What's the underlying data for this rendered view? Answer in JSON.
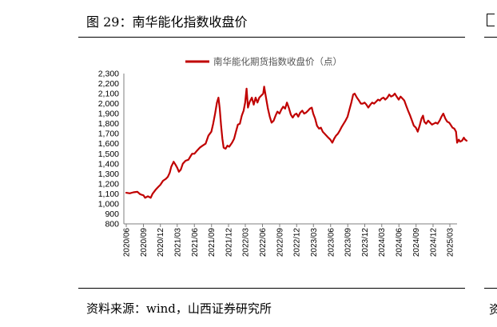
{
  "figure": {
    "title": "图 29：南华能化指数收盘价",
    "source": "资料来源：wind，山西证券研究所",
    "right_stub_top": "图",
    "right_stub_bottom": "资"
  },
  "chart_data": {
    "type": "line",
    "title": "",
    "xlabel": "",
    "ylabel": "",
    "ylim": [
      800,
      2300
    ],
    "yticks": [
      "2,300",
      "2,200",
      "2,100",
      "2,000",
      "1,900",
      "1,800",
      "1,700",
      "1,600",
      "1,500",
      "1,400",
      "1,300",
      "1,200",
      "1,100",
      "1,000",
      "900",
      "800"
    ],
    "xticks": [
      "2020/06",
      "2020/09",
      "2020/12",
      "2021/03",
      "2021/06",
      "2021/09",
      "2021/12",
      "2022/03",
      "2022/06",
      "2022/09",
      "2022/12",
      "2023/03",
      "2023/06",
      "2023/09",
      "2023/12",
      "2024/03",
      "2024/06",
      "2024/09",
      "2024/12",
      "2025/03"
    ],
    "legend_position": "top",
    "grid": false,
    "series": [
      {
        "name": "南华能化期货指数收盘价（点）",
        "color": "#c00000",
        "points": [
          [
            "2020-06-01",
            1110
          ],
          [
            "2020-06-20",
            1105
          ],
          [
            "2020-07-10",
            1115
          ],
          [
            "2020-07-31",
            1120
          ],
          [
            "2020-08-15",
            1095
          ],
          [
            "2020-09-01",
            1085
          ],
          [
            "2020-09-10",
            1060
          ],
          [
            "2020-09-25",
            1075
          ],
          [
            "2020-10-10",
            1060
          ],
          [
            "2020-10-20",
            1100
          ],
          [
            "2020-11-05",
            1140
          ],
          [
            "2020-11-20",
            1170
          ],
          [
            "2020-12-01",
            1190
          ],
          [
            "2020-12-15",
            1230
          ],
          [
            "2020-12-31",
            1250
          ],
          [
            "2021-01-10",
            1270
          ],
          [
            "2021-01-20",
            1310
          ],
          [
            "2021-01-28",
            1370
          ],
          [
            "2021-02-10",
            1420
          ],
          [
            "2021-02-20",
            1390
          ],
          [
            "2021-03-01",
            1360
          ],
          [
            "2021-03-10",
            1320
          ],
          [
            "2021-03-20",
            1340
          ],
          [
            "2021-03-31",
            1400
          ],
          [
            "2021-04-15",
            1430
          ],
          [
            "2021-04-30",
            1440
          ],
          [
            "2021-05-10",
            1470
          ],
          [
            "2021-05-20",
            1500
          ],
          [
            "2021-06-01",
            1500
          ],
          [
            "2021-06-15",
            1530
          ],
          [
            "2021-06-30",
            1560
          ],
          [
            "2021-07-15",
            1580
          ],
          [
            "2021-07-31",
            1600
          ],
          [
            "2021-08-15",
            1680
          ],
          [
            "2021-08-31",
            1720
          ],
          [
            "2021-09-10",
            1800
          ],
          [
            "2021-09-20",
            1900
          ],
          [
            "2021-09-30",
            2010
          ],
          [
            "2021-10-08",
            2060
          ],
          [
            "2021-10-15",
            1950
          ],
          [
            "2021-10-22",
            1780
          ],
          [
            "2021-10-29",
            1650
          ],
          [
            "2021-11-05",
            1560
          ],
          [
            "2021-11-15",
            1550
          ],
          [
            "2021-11-25",
            1580
          ],
          [
            "2021-12-05",
            1570
          ],
          [
            "2021-12-20",
            1610
          ],
          [
            "2021-12-31",
            1650
          ],
          [
            "2022-01-10",
            1720
          ],
          [
            "2022-01-20",
            1790
          ],
          [
            "2022-01-31",
            1800
          ],
          [
            "2022-02-10",
            1880
          ],
          [
            "2022-02-20",
            1930
          ],
          [
            "2022-02-28",
            2010
          ],
          [
            "2022-03-08",
            2150
          ],
          [
            "2022-03-15",
            1960
          ],
          [
            "2022-03-25",
            2020
          ],
          [
            "2022-04-05",
            2060
          ],
          [
            "2022-04-15",
            1990
          ],
          [
            "2022-04-25",
            2060
          ],
          [
            "2022-05-05",
            2010
          ],
          [
            "2022-05-15",
            2060
          ],
          [
            "2022-05-25",
            2080
          ],
          [
            "2022-06-05",
            2100
          ],
          [
            "2022-06-10",
            2170
          ],
          [
            "2022-06-20",
            2060
          ],
          [
            "2022-06-30",
            1950
          ],
          [
            "2022-07-10",
            1870
          ],
          [
            "2022-07-20",
            1810
          ],
          [
            "2022-07-31",
            1830
          ],
          [
            "2022-08-10",
            1880
          ],
          [
            "2022-08-20",
            1920
          ],
          [
            "2022-08-31",
            1900
          ],
          [
            "2022-09-10",
            1940
          ],
          [
            "2022-09-20",
            1970
          ],
          [
            "2022-09-30",
            1950
          ],
          [
            "2022-10-10",
            2010
          ],
          [
            "2022-10-20",
            1960
          ],
          [
            "2022-10-31",
            1890
          ],
          [
            "2022-11-10",
            1860
          ],
          [
            "2022-11-20",
            1890
          ],
          [
            "2022-11-30",
            1900
          ],
          [
            "2022-12-10",
            1870
          ],
          [
            "2022-12-20",
            1910
          ],
          [
            "2022-12-31",
            1930
          ],
          [
            "2023-01-10",
            1900
          ],
          [
            "2023-01-20",
            1910
          ],
          [
            "2023-01-31",
            1930
          ],
          [
            "2023-02-10",
            1950
          ],
          [
            "2023-02-20",
            1960
          ],
          [
            "2023-02-28",
            1900
          ],
          [
            "2023-03-10",
            1850
          ],
          [
            "2023-03-20",
            1780
          ],
          [
            "2023-03-31",
            1750
          ],
          [
            "2023-04-10",
            1760
          ],
          [
            "2023-04-20",
            1720
          ],
          [
            "2023-04-30",
            1700
          ],
          [
            "2023-05-10",
            1680
          ],
          [
            "2023-05-20",
            1660
          ],
          [
            "2023-05-31",
            1640
          ],
          [
            "2023-06-10",
            1610
          ],
          [
            "2023-06-20",
            1650
          ],
          [
            "2023-06-30",
            1680
          ],
          [
            "2023-07-10",
            1700
          ],
          [
            "2023-07-20",
            1730
          ],
          [
            "2023-07-31",
            1770
          ],
          [
            "2023-08-10",
            1800
          ],
          [
            "2023-08-20",
            1830
          ],
          [
            "2023-08-31",
            1870
          ],
          [
            "2023-09-10",
            1940
          ],
          [
            "2023-09-20",
            2010
          ],
          [
            "2023-09-30",
            2090
          ],
          [
            "2023-10-08",
            2100
          ],
          [
            "2023-10-20",
            2060
          ],
          [
            "2023-10-31",
            2030
          ],
          [
            "2023-11-10",
            2000
          ],
          [
            "2023-11-20",
            2000
          ],
          [
            "2023-11-30",
            2010
          ],
          [
            "2023-12-10",
            1990
          ],
          [
            "2023-12-20",
            1960
          ],
          [
            "2023-12-31",
            1990
          ],
          [
            "2024-01-10",
            2010
          ],
          [
            "2024-01-20",
            2000
          ],
          [
            "2024-01-31",
            2020
          ],
          [
            "2024-02-10",
            2040
          ],
          [
            "2024-02-20",
            2030
          ],
          [
            "2024-02-29",
            2050
          ],
          [
            "2024-03-10",
            2060
          ],
          [
            "2024-03-20",
            2040
          ],
          [
            "2024-03-31",
            2060
          ],
          [
            "2024-04-10",
            2090
          ],
          [
            "2024-04-20",
            2070
          ],
          [
            "2024-04-30",
            2080
          ],
          [
            "2024-05-10",
            2100
          ],
          [
            "2024-05-20",
            2070
          ],
          [
            "2024-05-31",
            2040
          ],
          [
            "2024-06-10",
            2070
          ],
          [
            "2024-06-20",
            2050
          ],
          [
            "2024-06-30",
            2030
          ],
          [
            "2024-07-10",
            1980
          ],
          [
            "2024-07-20",
            1930
          ],
          [
            "2024-07-31",
            1880
          ],
          [
            "2024-08-10",
            1830
          ],
          [
            "2024-08-20",
            1780
          ],
          [
            "2024-08-31",
            1760
          ],
          [
            "2024-09-10",
            1720
          ],
          [
            "2024-09-20",
            1780
          ],
          [
            "2024-09-30",
            1850
          ],
          [
            "2024-10-08",
            1880
          ],
          [
            "2024-10-15",
            1820
          ],
          [
            "2024-10-25",
            1800
          ],
          [
            "2024-11-05",
            1830
          ],
          [
            "2024-11-15",
            1810
          ],
          [
            "2024-11-25",
            1790
          ],
          [
            "2024-12-05",
            1800
          ],
          [
            "2024-12-15",
            1810
          ],
          [
            "2024-12-25",
            1800
          ],
          [
            "2025-01-05",
            1830
          ],
          [
            "2025-01-15",
            1870
          ],
          [
            "2025-01-25",
            1900
          ],
          [
            "2025-02-05",
            1850
          ],
          [
            "2025-02-15",
            1820
          ],
          [
            "2025-02-25",
            1810
          ],
          [
            "2025-03-05",
            1790
          ],
          [
            "2025-03-15",
            1760
          ],
          [
            "2025-03-25",
            1750
          ],
          [
            "2025-04-03",
            1720
          ],
          [
            "2025-04-09",
            1610
          ],
          [
            "2025-04-18",
            1640
          ],
          [
            "2025-04-25",
            1620
          ],
          [
            "2025-05-05",
            1630
          ],
          [
            "2025-05-15",
            1660
          ],
          [
            "2025-05-22",
            1640
          ],
          [
            "2025-05-30",
            1630
          ]
        ]
      }
    ]
  }
}
